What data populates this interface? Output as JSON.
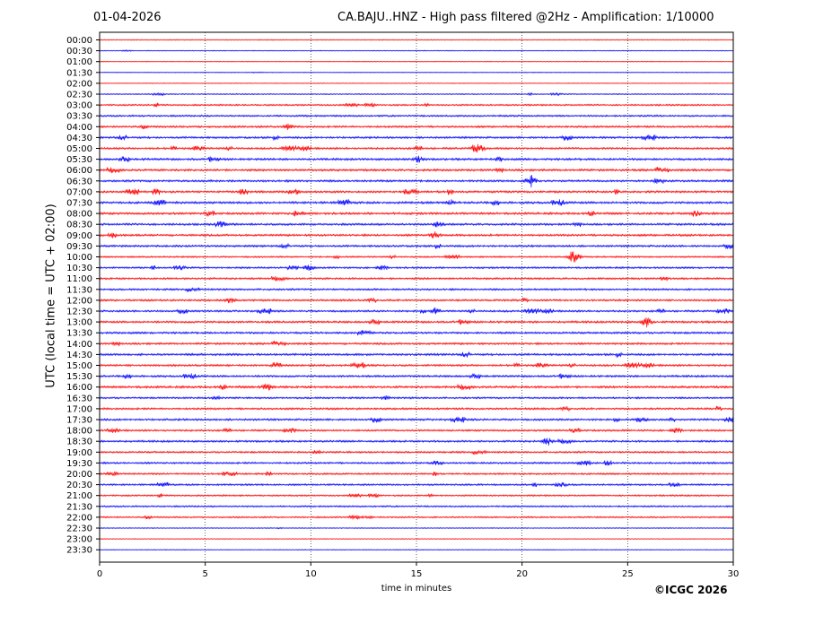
{
  "header": {
    "date": "01-04-2026",
    "title": "CA.BAJU..HNZ - High pass filtered @2Hz - Amplification: 1/10000"
  },
  "footer": {
    "copyright": "©ICGC 2026"
  },
  "chart_data": {
    "type": "line",
    "title": "CA.BAJU..HNZ - High pass filtered @2Hz - Amplification: 1/10000",
    "xlabel": "time in minutes",
    "ylabel": "UTC (local time = UTC + 02:00)",
    "xlim": [
      0,
      30
    ],
    "xticks": [
      0,
      5,
      10,
      15,
      20,
      25,
      30
    ],
    "vertical_gridlines_at": [
      5,
      10,
      15,
      20,
      25
    ],
    "grid": "dotted vertical",
    "row_labels": [
      "00:00",
      "00:30",
      "01:00",
      "01:30",
      "02:00",
      "02:30",
      "03:00",
      "03:30",
      "04:00",
      "04:30",
      "05:00",
      "05:30",
      "06:00",
      "06:30",
      "07:00",
      "07:30",
      "08:00",
      "08:30",
      "09:00",
      "09:30",
      "10:00",
      "10:30",
      "11:00",
      "11:30",
      "12:00",
      "12:30",
      "13:00",
      "13:30",
      "14:00",
      "14:30",
      "15:00",
      "15:30",
      "16:00",
      "16:30",
      "17:00",
      "17:30",
      "18:00",
      "18:30",
      "19:00",
      "19:30",
      "20:00",
      "20:30",
      "21:00",
      "21:30",
      "22:00",
      "22:30",
      "23:00",
      "23:30"
    ],
    "trace_colors": [
      "#ff0000",
      "#0000ff"
    ],
    "trace_activity": [
      0.15,
      0.12,
      0.12,
      0.12,
      0.12,
      0.3,
      0.6,
      0.7,
      0.8,
      0.85,
      0.85,
      0.9,
      0.95,
      0.9,
      0.9,
      1.0,
      0.95,
      0.9,
      0.9,
      0.85,
      0.6,
      0.7,
      0.8,
      0.75,
      0.8,
      0.8,
      0.9,
      0.85,
      0.85,
      0.9,
      0.85,
      0.85,
      0.95,
      0.7,
      0.8,
      0.85,
      0.75,
      0.8,
      0.75,
      0.75,
      0.7,
      0.7,
      0.6,
      0.6,
      0.55,
      0.15,
      0.12,
      0.12
    ],
    "events": [
      {
        "row": "04:00",
        "minute": 8.9,
        "amplitude": 0.5
      },
      {
        "row": "05:00",
        "minute": 17.8,
        "amplitude": 0.5
      },
      {
        "row": "05:30",
        "minute": 15.1,
        "amplitude": 0.6
      },
      {
        "row": "06:30",
        "minute": 20.4,
        "amplitude": 1.4
      },
      {
        "row": "07:30",
        "minute": 16.6,
        "amplitude": 0.6
      },
      {
        "row": "08:00",
        "minute": 28.2,
        "amplitude": 0.6
      },
      {
        "row": "08:30",
        "minute": 16.0,
        "amplitude": 0.6
      },
      {
        "row": "09:00",
        "minute": 15.9,
        "amplitude": 0.7
      },
      {
        "row": "10:00",
        "minute": 22.4,
        "amplitude": 1.1
      },
      {
        "row": "10:30",
        "minute": 9.9,
        "amplitude": 0.6
      },
      {
        "row": "12:00",
        "minute": 6.2,
        "amplitude": 0.6
      },
      {
        "row": "12:30",
        "minute": 15.9,
        "amplitude": 0.7
      },
      {
        "row": "13:00",
        "minute": 25.9,
        "amplitude": 0.9
      },
      {
        "row": "16:00",
        "minute": 7.9,
        "amplitude": 0.7
      },
      {
        "row": "18:30",
        "minute": 21.2,
        "amplitude": 0.7
      },
      {
        "row": "19:30",
        "minute": 16.0,
        "amplitude": 0.5
      },
      {
        "row": "22:00",
        "minute": 12.1,
        "amplitude": 0.5
      }
    ]
  }
}
